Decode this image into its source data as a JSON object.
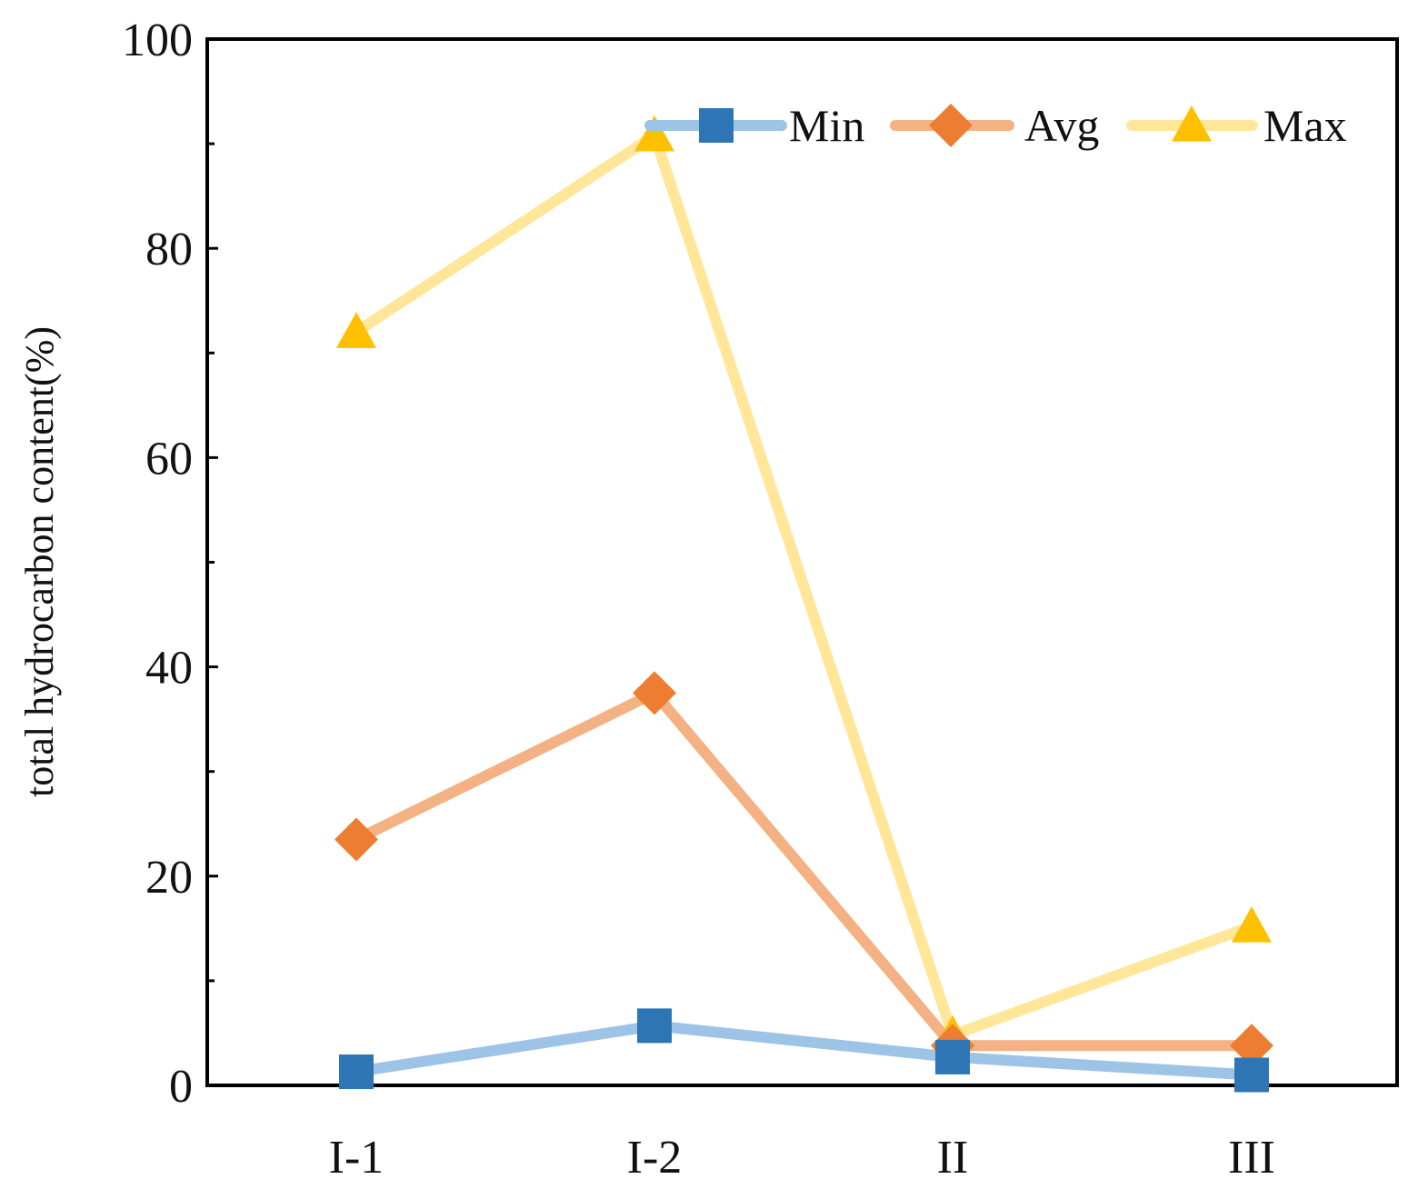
{
  "chart_data": {
    "type": "line",
    "title": "",
    "xlabel": "",
    "ylabel": "total hydrocarbon content(%)",
    "categories": [
      "I-1",
      "I-2",
      "II",
      "III"
    ],
    "ylim": [
      0,
      100
    ],
    "yticks": [
      0,
      20,
      40,
      60,
      80,
      100
    ],
    "ytick_labels": [
      "0",
      "20",
      "40",
      "60",
      "80",
      "100"
    ],
    "grid": false,
    "legend_position": "top-right",
    "series": [
      {
        "name": "Min",
        "values": [
          1.3,
          5.7,
          2.7,
          1.0
        ],
        "line_color": "#9dc3e6",
        "marker_color": "#2e75b6",
        "marker": "square"
      },
      {
        "name": "Avg",
        "values": [
          23.5,
          37.5,
          3.8,
          3.8
        ],
        "line_color": "#f4b183",
        "marker_color": "#ed7d31",
        "marker": "diamond"
      },
      {
        "name": "Max",
        "values": [
          72.0,
          90.8,
          4.8,
          15.2
        ],
        "line_color": "#ffe699",
        "marker_color": "#ffc000",
        "marker": "triangle"
      }
    ]
  }
}
